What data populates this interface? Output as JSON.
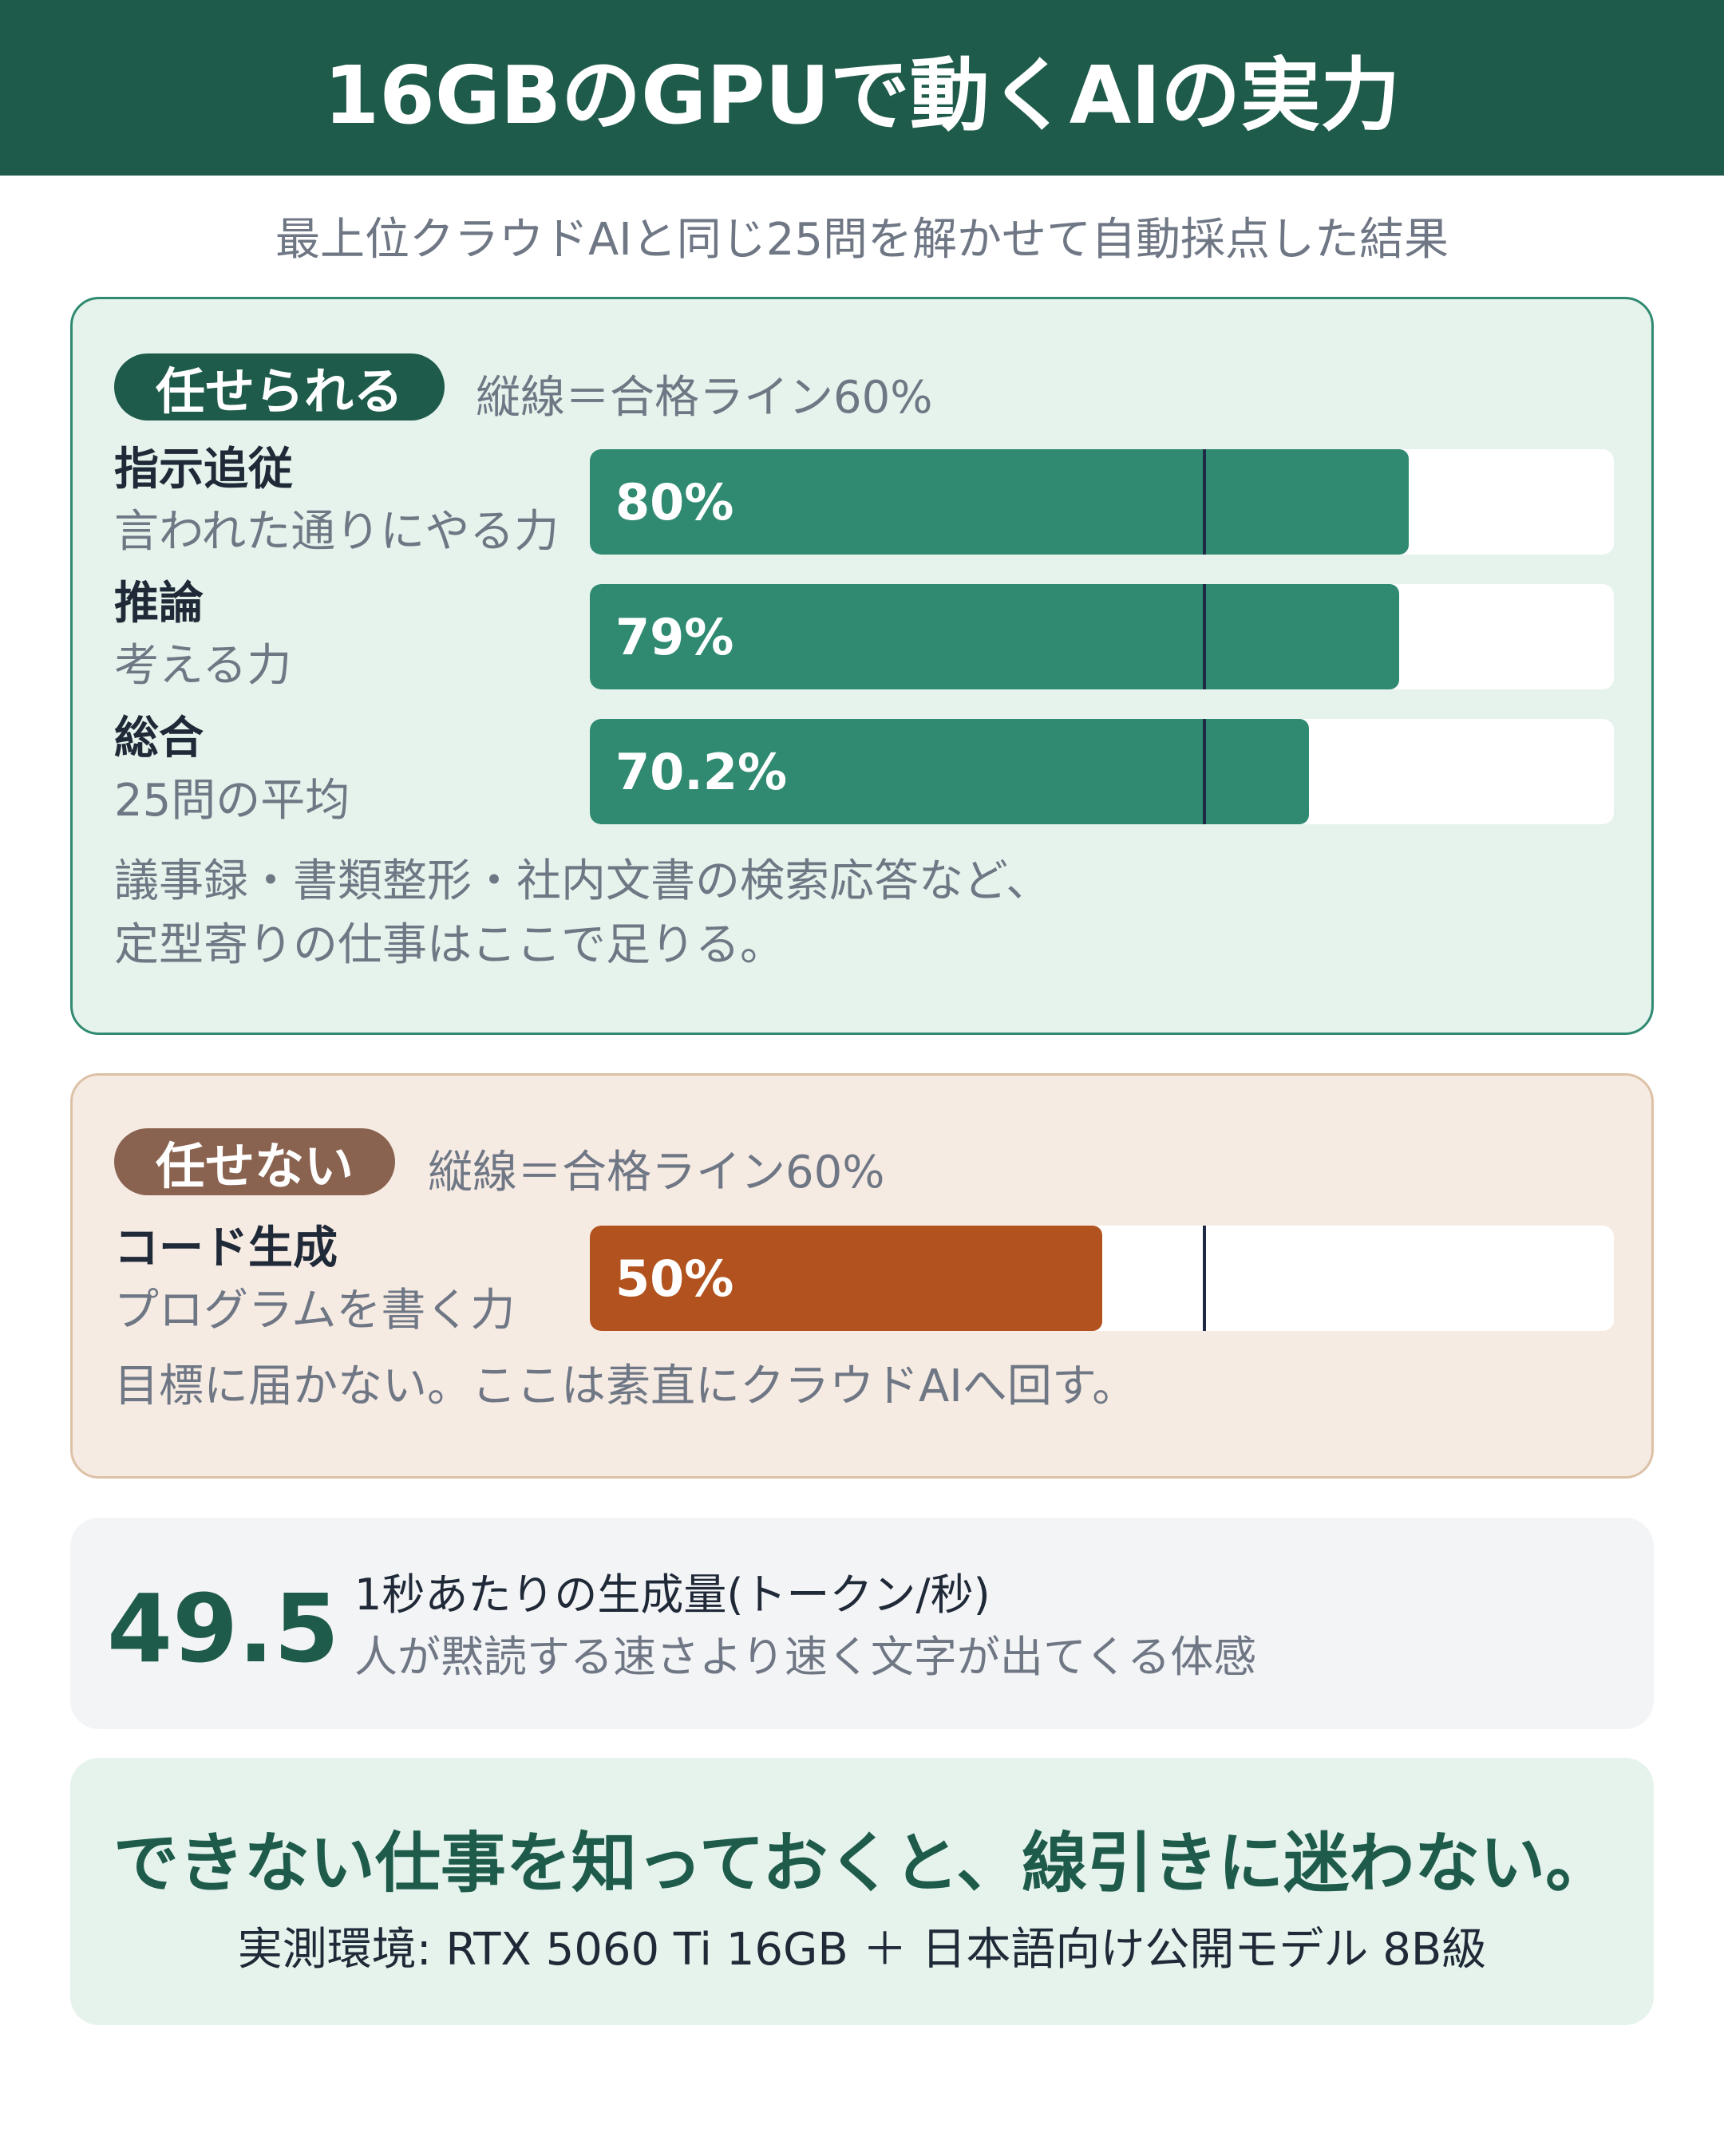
{
  "header": {
    "title": "16GBのGPUで動くAIの実力"
  },
  "subtitle": "最上位クラウドAIと同じ25問を解かせて自動採点した結果",
  "good_section": {
    "badge": "任せられる",
    "pass_note": "縦線＝合格ライン60%",
    "pass_line": 0.6,
    "rows": [
      {
        "title": "指示追従",
        "subtitle": "言われた通りにやる力",
        "value_label": "80%",
        "value": 80
      },
      {
        "title": "推論",
        "subtitle": "考える力",
        "value_label": "79%",
        "value": 79
      },
      {
        "title": "総合",
        "subtitle": "25問の平均",
        "value_label": "70.2%",
        "value": 70.2
      }
    ],
    "note_line1": "議事録・書類整形・社内文書の検索応答など、",
    "note_line2": "定型寄りの仕事はここで足りる。",
    "color": "#2f8a71"
  },
  "bad_section": {
    "badge": "任せない",
    "pass_note": "縦線＝合格ライン60%",
    "pass_line": 0.6,
    "rows": [
      {
        "title": "コード生成",
        "subtitle": "プログラムを書く力",
        "value_label": "50%",
        "value": 50
      }
    ],
    "note": "目標に届かない。ここは素直にクラウドAIへ回す。",
    "color": "#b2521e"
  },
  "speed": {
    "number": "49.5",
    "label": "1秒あたりの生成量(トークン/秒)",
    "sub": "人が黙読する速さより速く文字が出てくる体感"
  },
  "footer": {
    "main": "できない仕事を知っておくと、線引きに迷わない。",
    "env": "実測環境: RTX 5060 Ti 16GB ＋ 日本語向け公開モデル 8B級"
  },
  "colors": {
    "brand": "#1e5b4b",
    "good": "#2f8a71",
    "bad": "#b2521e",
    "pass_line": "#1f2a44"
  }
}
